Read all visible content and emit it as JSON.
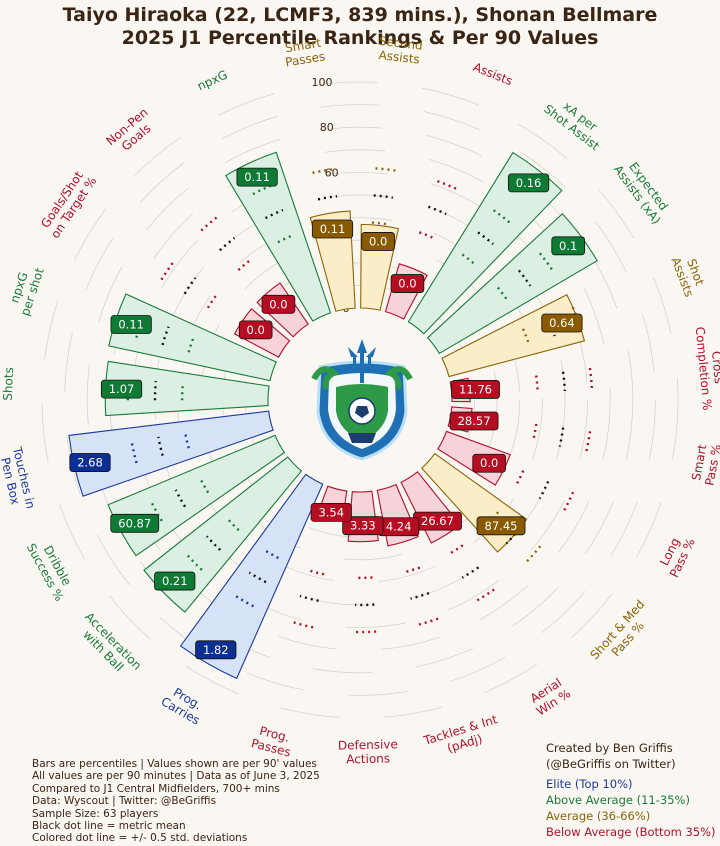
{
  "header": {
    "title_line1": "Taiyo Hiraoka (22, LCMF3, 839 mins.), Shonan Bellmare",
    "title_line2": "2025 J1 Percentile Rankings & Per 90 Values"
  },
  "colors": {
    "elite": "#1a3a9a",
    "above": "#1a7a3a",
    "average": "#8a6508",
    "below": "#b0102a",
    "text": "#3a2414"
  },
  "chart_data": {
    "type": "polar-bar",
    "radial_axis_ticks": [
      "0",
      "20",
      "40",
      "60",
      "80",
      "100"
    ],
    "metrics": [
      {
        "label": "Prog.\nCarries",
        "percentile": 94,
        "value": "1.82",
        "tier": "elite"
      },
      {
        "label": "Acceleration\nwith Ball",
        "percentile": 81,
        "value": "0.21",
        "tier": "above"
      },
      {
        "label": "Dribble\nSuccess %",
        "percentile": 80,
        "value": "60.87",
        "tier": "above"
      },
      {
        "label": "Touches in\nPen Box",
        "percentile": 89,
        "value": "2.68",
        "tier": "elite"
      },
      {
        "label": "Shots",
        "percentile": 72,
        "value": "1.07",
        "tier": "above"
      },
      {
        "label": "npxG\nper shot",
        "percentile": 73,
        "value": "0.11",
        "tier": "above"
      },
      {
        "label": "Goals/Shot\non Target %",
        "percentile": 22,
        "value": "0.0",
        "tier": "below"
      },
      {
        "label": "Non-Pen\nGoals",
        "percentile": 22,
        "value": "0.0",
        "tier": "below"
      },
      {
        "label": "npxG",
        "percentile": 75,
        "value": "0.11",
        "tier": "above"
      },
      {
        "label": "Smart\nPasses",
        "percentile": 43,
        "value": "0.11",
        "tier": "average"
      },
      {
        "label": "Second\nAssists",
        "percentile": 37,
        "value": "0.0",
        "tier": "average"
      },
      {
        "label": "Assists",
        "percentile": 22,
        "value": "0.0",
        "tier": "below"
      },
      {
        "label": "xA per\nShot Assist",
        "percentile": 88,
        "value": "0.16",
        "tier": "above"
      },
      {
        "label": "Expected\nAssists (xA)",
        "percentile": 81,
        "value": "0.1",
        "tier": "above"
      },
      {
        "label": "Shot\nAssists",
        "percentile": 62,
        "value": "0.64",
        "tier": "average"
      },
      {
        "label": "Cross\nCompletion %",
        "percentile": 8,
        "value": "11.76",
        "tier": "below"
      },
      {
        "label": "Smart\nPass %",
        "percentile": 9,
        "value": "28.57",
        "tier": "below"
      },
      {
        "label": "Long\nPass %",
        "percentile": 30,
        "value": "0.0",
        "tier": "below"
      },
      {
        "label": "Short & Med\nPass %",
        "percentile": 50,
        "value": "87.45",
        "tier": "average"
      },
      {
        "label": "Aerial\nWin %",
        "percentile": 30,
        "value": "26.67",
        "tier": "below"
      },
      {
        "label": "Tackles & Int\n(pAdj)",
        "percentile": 25,
        "value": "4.24",
        "tier": "below"
      },
      {
        "label": "Defensive\nActions",
        "percentile": 22,
        "value": "3.33",
        "tier": "below"
      },
      {
        "label": "Prog.\nPasses",
        "percentile": 10,
        "value": "3.54",
        "tier": "below"
      }
    ]
  },
  "notes": {
    "line1": "Bars are percentiles | Values shown are per 90' values",
    "line2": "All values are per 90 minutes | Data as of June 3, 2025",
    "line3": "Compared to J1 Central Midfielders, 700+ mins",
    "line4": "Data: Wyscout | Twitter: @BeGriffis",
    "line5": "Sample Size: 63 players",
    "line6": "Black dot line = metric mean",
    "line7": "Colored dot line = +/- 0.5 std. deviations"
  },
  "credit": {
    "line1": "Created by Ben Griffis",
    "line2": "(@BeGriffis on Twitter)"
  },
  "legend": {
    "elite": "Elite (Top 10%)",
    "above": "Above Average (11-35%)",
    "average": "Average (36-66%)",
    "below": "Below Average (Bottom 35%)"
  }
}
